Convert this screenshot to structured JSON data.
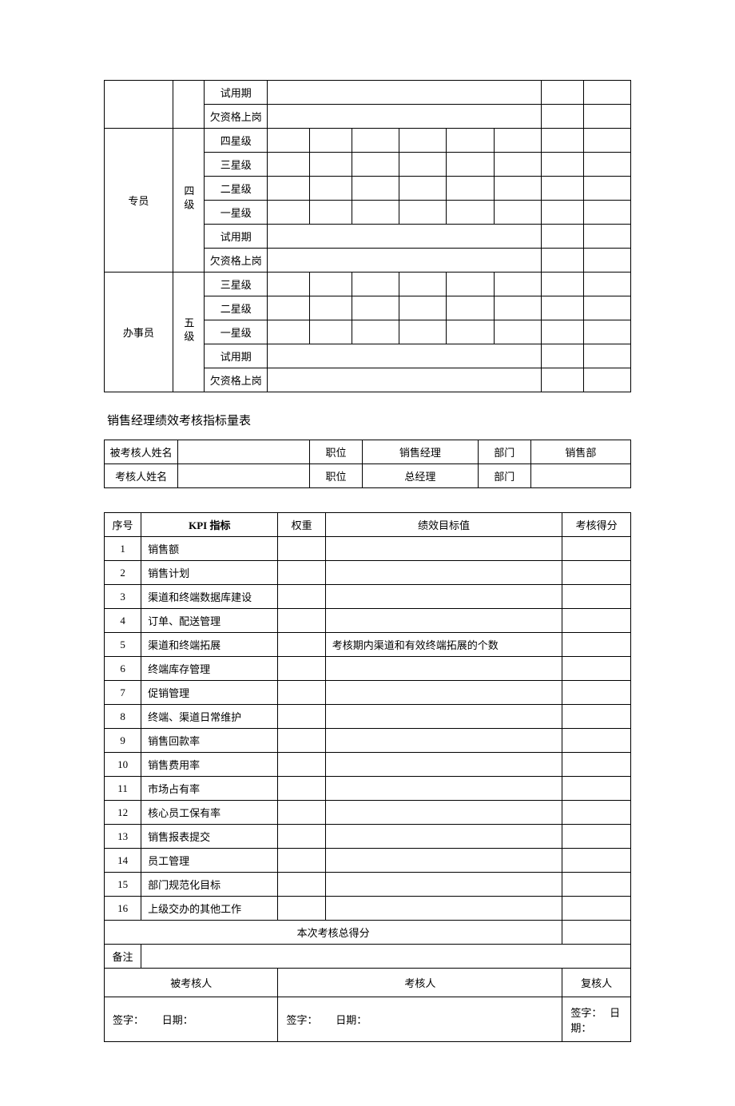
{
  "table1": {
    "group0": {
      "rows": [
        "试用期",
        "欠资格上岗"
      ]
    },
    "group1": {
      "role": "专员",
      "level": "四级",
      "stars": [
        "四星级",
        "三星级",
        "二星级",
        "一星级"
      ],
      "extra": [
        "试用期",
        "欠资格上岗"
      ]
    },
    "group2": {
      "role": "办事员",
      "level": "五级",
      "stars": [
        "三星级",
        "二星级",
        "一星级"
      ],
      "extra": [
        "试用期",
        "欠资格上岗"
      ]
    }
  },
  "sectionTitle": "销售经理绩效考核指标量表",
  "table2": {
    "r1": {
      "l1": "被考核人姓名",
      "l2": "职位",
      "l3": "销售经理",
      "l4": "部门",
      "l5": "销售部"
    },
    "r2": {
      "l1": "考核人姓名",
      "l2": "职位",
      "l3": "总经理",
      "l4": "部门",
      "l5": ""
    }
  },
  "table3": {
    "head": {
      "c1": "序号",
      "c2": "KPI 指标",
      "c3": "权重",
      "c4": "绩效目标值",
      "c5": "考核得分"
    },
    "rows": [
      {
        "n": "1",
        "k": "销售额",
        "t": ""
      },
      {
        "n": "2",
        "k": "销售计划",
        "t": ""
      },
      {
        "n": "3",
        "k": "渠道和终端数据库建设",
        "t": ""
      },
      {
        "n": "4",
        "k": "订单、配送管理",
        "t": ""
      },
      {
        "n": "5",
        "k": "渠道和终端拓展",
        "t": "考核期内渠道和有效终端拓展的个数"
      },
      {
        "n": "6",
        "k": "终端库存管理",
        "t": ""
      },
      {
        "n": "7",
        "k": "促销管理",
        "t": ""
      },
      {
        "n": "8",
        "k": "终端、渠道日常维护",
        "t": ""
      },
      {
        "n": "9",
        "k": "销售回款率",
        "t": ""
      },
      {
        "n": "10",
        "k": "销售费用率",
        "t": ""
      },
      {
        "n": "11",
        "k": "市场占有率",
        "t": ""
      },
      {
        "n": "12",
        "k": "核心员工保有率",
        "t": ""
      },
      {
        "n": "13",
        "k": "销售报表提交",
        "t": ""
      },
      {
        "n": "14",
        "k": "员工管理",
        "t": ""
      },
      {
        "n": "15",
        "k": "部门规范化目标",
        "t": ""
      },
      {
        "n": "16",
        "k": "上级交办的其他工作",
        "t": ""
      }
    ],
    "total": "本次考核总得分",
    "remark": "备注",
    "roles": {
      "a": "被考核人",
      "b": "考核人",
      "c": "复核人"
    },
    "sign": {
      "s": "签字：",
      "d": "日期："
    }
  }
}
